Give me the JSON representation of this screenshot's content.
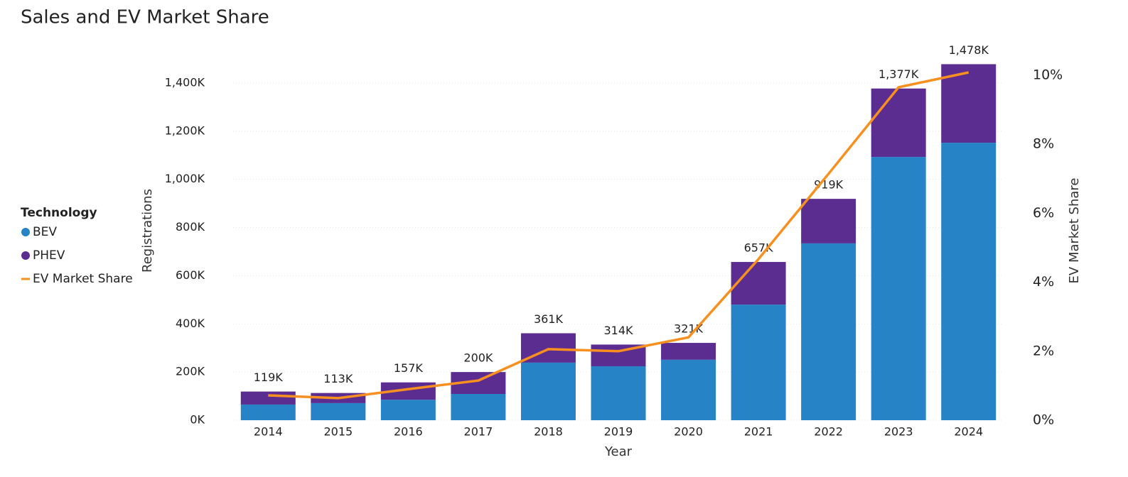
{
  "chart_data": {
    "type": "bar-line",
    "title": "Sales and EV Market Share",
    "x_label": "Year",
    "y_label": "Registrations",
    "y2_label": "EV Market Share",
    "legend_title": "Technology",
    "legend_position": "left",
    "grid": true,
    "categories": [
      "2014",
      "2015",
      "2016",
      "2017",
      "2018",
      "2019",
      "2020",
      "2021",
      "2022",
      "2023",
      "2024"
    ],
    "series": [
      {
        "name": "BEV",
        "type": "bar",
        "color": "#2683c6",
        "values": [
          65000,
          71000,
          85000,
          109000,
          239000,
          224000,
          251000,
          480000,
          734000,
          1093000,
          1152000
        ]
      },
      {
        "name": "PHEV",
        "type": "bar",
        "color": "#5c2d91",
        "values": [
          54000,
          42000,
          72000,
          91000,
          122000,
          90000,
          70000,
          177000,
          185000,
          284000,
          326000
        ]
      },
      {
        "name": "EV Market Share",
        "type": "line",
        "axis": "y2",
        "color": "#f7901e",
        "values": [
          0.72,
          0.64,
          0.9,
          1.15,
          2.06,
          2.0,
          2.4,
          4.67,
          7.14,
          9.65,
          10.08
        ]
      }
    ],
    "total_values": [
      119000,
      113000,
      157000,
      200000,
      361000,
      314000,
      321000,
      657000,
      919000,
      1377000,
      1478000
    ],
    "total_labels": [
      "119K",
      "113K",
      "157K",
      "200K",
      "361K",
      "314K",
      "321K",
      "657K",
      "919K",
      "1,377K",
      "1,478K"
    ],
    "ylim": [
      0,
      1494000
    ],
    "yticks": [
      {
        "value": 0,
        "label": "0K"
      },
      {
        "value": 200000,
        "label": "200K"
      },
      {
        "value": 400000,
        "label": "400K"
      },
      {
        "value": 600000,
        "label": "600K"
      },
      {
        "value": 800000,
        "label": "800K"
      },
      {
        "value": 1000000,
        "label": "1,000K"
      },
      {
        "value": 1200000,
        "label": "1,200K"
      },
      {
        "value": 1400000,
        "label": "1,400K"
      }
    ],
    "y2lim": [
      0,
      10.43
    ],
    "y2ticks": [
      {
        "value": 0,
        "label": "0%"
      },
      {
        "value": 2,
        "label": "2%"
      },
      {
        "value": 4,
        "label": "4%"
      },
      {
        "value": 6,
        "label": "6%"
      },
      {
        "value": 8,
        "label": "8%"
      },
      {
        "value": 10,
        "label": "10%"
      }
    ]
  }
}
